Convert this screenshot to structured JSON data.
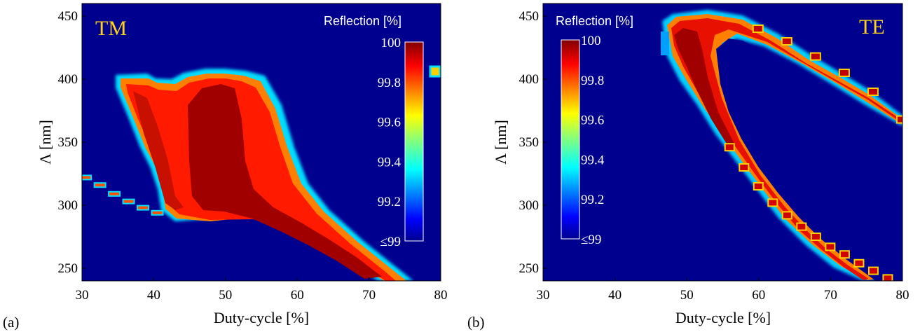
{
  "chart_data": [
    {
      "type": "heatmap",
      "panel_label": "(a)",
      "mode_label": "TM",
      "xlabel": "Duty-cycle [%]",
      "ylabel": "Λ [nm]",
      "xlim": [
        30,
        80
      ],
      "ylim": [
        240,
        460
      ],
      "xticks": [
        "30",
        "40",
        "50",
        "60",
        "70",
        "80"
      ],
      "yticks": [
        "250",
        "300",
        "350",
        "400",
        "450"
      ],
      "background_color": "#00008F",
      "colorbar": {
        "title": "Reflection [%]",
        "ticks": [
          "100",
          "99.8",
          "99.6",
          "99.4",
          "99.2",
          "≤99"
        ],
        "range": [
          99,
          100
        ],
        "placement": "right"
      },
      "bands": [
        {
          "kind": "lower_edge",
          "points": [
            [
              40,
              296
            ],
            [
              44,
              292
            ],
            [
              48,
              290
            ],
            [
              52,
              291
            ],
            [
              56,
              290
            ],
            [
              60,
              285
            ],
            [
              64,
              275
            ],
            [
              68,
              265
            ],
            [
              72,
              255
            ],
            [
              75,
              245
            ],
            [
              77,
              240
            ]
          ]
        },
        {
          "kind": "upper_edge",
          "points": [
            [
              36,
              397
            ],
            [
              40,
              388
            ],
            [
              42,
              388
            ],
            [
              44,
              396
            ],
            [
              47,
              398
            ],
            [
              50,
              398
            ],
            [
              54,
              396
            ],
            [
              57,
              388
            ],
            [
              60,
              360
            ],
            [
              62,
              330
            ],
            [
              64,
              305
            ],
            [
              66,
              290
            ],
            [
              70,
              270
            ],
            [
              73,
              255
            ],
            [
              76,
              244
            ]
          ]
        },
        {
          "kind": "inner_edge",
          "points": [
            [
              35.5,
              395
            ],
            [
              37,
              380
            ],
            [
              39,
              366
            ],
            [
              41,
              350
            ],
            [
              42.5,
              330
            ],
            [
              42.8,
              300
            ]
          ]
        },
        {
          "kind": "dash_line",
          "points": [
            [
              30.5,
              322
            ],
            [
              32.5,
              316
            ],
            [
              34.5,
              309
            ],
            [
              36.5,
              303
            ],
            [
              38.5,
              298
            ],
            [
              40.5,
              294
            ]
          ]
        }
      ]
    },
    {
      "type": "heatmap",
      "panel_label": "(b)",
      "mode_label": "TE",
      "xlabel": "Duty-cycle [%]",
      "ylabel": "Λ [nm]",
      "xlim": [
        30,
        80
      ],
      "ylim": [
        240,
        460
      ],
      "xticks": [
        "30",
        "40",
        "50",
        "60",
        "70",
        "80"
      ],
      "yticks": [
        "250",
        "300",
        "350",
        "400",
        "450"
      ],
      "background_color": "#00008F",
      "colorbar": {
        "title": "Reflection [%]",
        "ticks": [
          "100",
          "99.8",
          "99.6",
          "99.4",
          "99.2",
          "≤99"
        ],
        "range": [
          99,
          100
        ],
        "placement": "left"
      },
      "bands": [
        {
          "kind": "upper_branch",
          "points": [
            [
              48,
              440
            ],
            [
              52,
              448
            ],
            [
              56,
              446
            ],
            [
              60,
              440
            ],
            [
              64,
              430
            ],
            [
              68,
              418
            ],
            [
              72,
              405
            ],
            [
              76,
              390
            ],
            [
              80,
              368
            ]
          ]
        },
        {
          "kind": "lower_branch",
          "points": [
            [
              48,
              430
            ],
            [
              50,
              400
            ],
            [
              52,
              380
            ],
            [
              54,
              362
            ],
            [
              56,
              346
            ],
            [
              58,
              330
            ],
            [
              60,
              315
            ],
            [
              62,
              302
            ],
            [
              64,
              292
            ],
            [
              66,
              283
            ],
            [
              68,
              275
            ],
            [
              70,
              267
            ],
            [
              72,
              261
            ],
            [
              74,
              254
            ],
            [
              76,
              248
            ],
            [
              78,
              242
            ]
          ]
        },
        {
          "kind": "fill_curve",
          "points": [
            [
              49,
              440
            ],
            [
              50,
              420
            ],
            [
              51.5,
              400
            ],
            [
              53,
              380
            ],
            [
              54.5,
              365
            ]
          ]
        }
      ]
    }
  ],
  "colors": {
    "mode_label": "#FFD21A",
    "colormap": [
      "#00008F",
      "#0000FF",
      "#0080FF",
      "#00FFFF",
      "#80FF80",
      "#FFFF00",
      "#FF8000",
      "#FF0000",
      "#800000"
    ]
  }
}
